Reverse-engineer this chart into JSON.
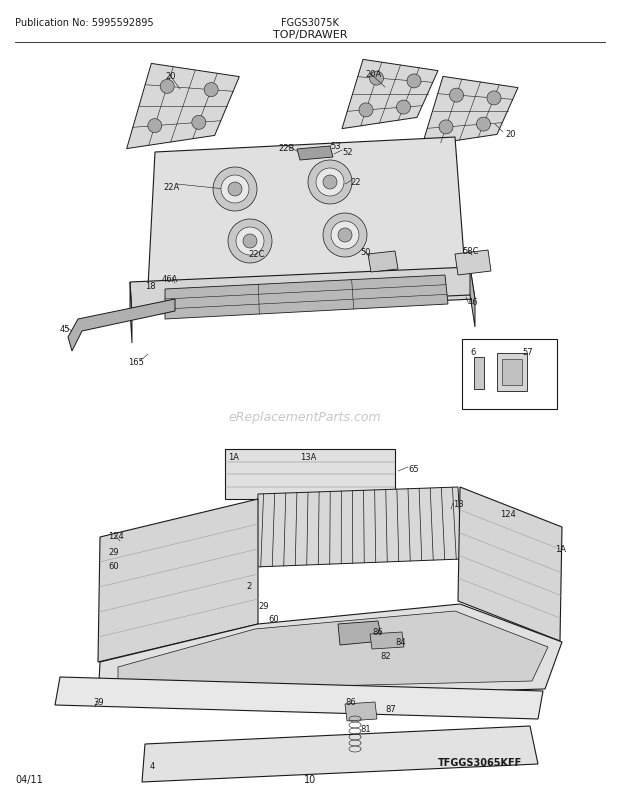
{
  "fig_width": 6.2,
  "fig_height": 8.03,
  "dpi": 100,
  "bg_color": "#ffffff",
  "pub_no": "Publication No: 5995592895",
  "model": "FGGS3075K",
  "section": "TOP/DRAWER",
  "date": "04/11",
  "page": "10",
  "watermark": "eReplacementParts.com",
  "diagram_label": "TFGGS3065KFF",
  "title_fontsize": 8,
  "header_fontsize": 7,
  "footer_fontsize": 7,
  "label_fontsize": 6,
  "line_color": "#1a1a1a",
  "face_light": "#e8e8e8",
  "face_mid": "#d0d0d0",
  "face_dark": "#b8b8b8",
  "face_white": "#f5f5f5"
}
